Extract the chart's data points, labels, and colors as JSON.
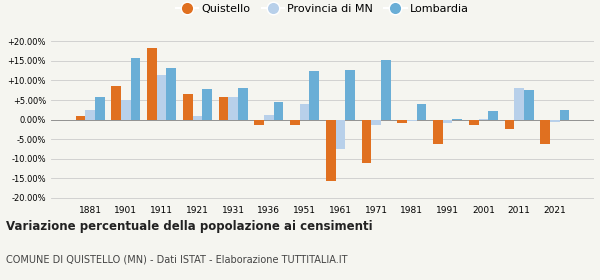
{
  "years": [
    1881,
    1901,
    1911,
    1921,
    1931,
    1936,
    1951,
    1961,
    1971,
    1981,
    1991,
    2001,
    2011,
    2021
  ],
  "quistello": [
    1.0,
    8.7,
    18.2,
    6.5,
    5.8,
    -1.5,
    -1.3,
    -15.8,
    -11.0,
    -0.8,
    -6.3,
    -1.5,
    -2.5,
    -6.2
  ],
  "provincia_mn": [
    2.5,
    5.0,
    11.5,
    0.8,
    5.7,
    1.1,
    4.1,
    -7.5,
    -1.5,
    -0.3,
    -1.0,
    0.2,
    8.0,
    -0.5
  ],
  "lombardia": [
    5.7,
    15.8,
    13.3,
    7.9,
    8.0,
    4.4,
    12.5,
    12.7,
    15.3,
    4.0,
    0.2,
    2.2,
    7.5,
    2.5
  ],
  "color_quistello": "#e07020",
  "color_provincia": "#b8d0ea",
  "color_lombardia": "#6aaed6",
  "title": "Variazione percentuale della popolazione ai censimenti",
  "subtitle": "COMUNE DI QUISTELLO (MN) - Dati ISTAT - Elaborazione TUTTITALIA.IT",
  "legend_labels": [
    "Quistello",
    "Provincia di MN",
    "Lombardia"
  ],
  "yticks": [
    -20,
    -15,
    -10,
    -5,
    0,
    5,
    10,
    15,
    20
  ],
  "ytick_labels": [
    "-20.00%",
    "-15.00%",
    "-10.00%",
    "-5.00%",
    "0.00%",
    "+5.00%",
    "+10.00%",
    "+15.00%",
    "+20.00%"
  ],
  "ylim": [
    -21,
    22
  ],
  "background_color": "#f5f5f0",
  "grid_color": "#cccccc"
}
